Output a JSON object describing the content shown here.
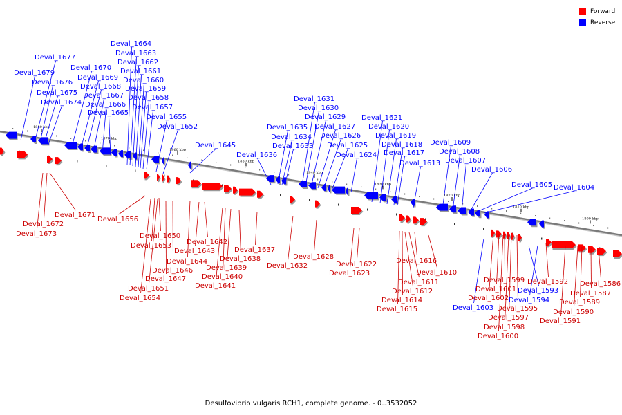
{
  "legend": {
    "forward": {
      "label": "Forward",
      "color": "#ff0000"
    },
    "reverse": {
      "label": "Reverse",
      "color": "#0000ff"
    }
  },
  "caption": "Desulfovibrio vulgaris RCH1, complete genome. - 0..3532052",
  "ticks": [
    "1880 kbp",
    "1870 kbp",
    "1860 kbp",
    "1850 kbp",
    "1840 kbp",
    "1830 kbp",
    "1820 kbp",
    "1810 kbp",
    "1800 kbp"
  ],
  "genes_reverse": [
    "Deval_1677",
    "Deval_1679",
    "Deval_1676",
    "Deval_1675",
    "Deval_1674",
    "Deval_1664",
    "Deval_1663",
    "Deval_1662",
    "Deval_1661",
    "Deval_1660",
    "Deval_1659",
    "Deval_1658",
    "Deval_1657",
    "Deval_1655",
    "Deval_1652",
    "Deval_1670",
    "Deval_1669",
    "Deval_1668",
    "Deval_1667",
    "Deval_1666",
    "Deval_1665",
    "Deval_1645",
    "Deval_1636",
    "Deval_1631",
    "Deval_1630",
    "Deval_1629",
    "Deval_1627",
    "Deval_1626",
    "Deval_1625",
    "Deval_1624",
    "Deval_1635",
    "Deval_1634",
    "Deval_1633",
    "Deval_1621",
    "Deval_1620",
    "Deval_1619",
    "Deval_1618",
    "Deval_1617",
    "Deval_1613",
    "Deval_1609",
    "Deval_1608",
    "Deval_1607",
    "Deval_1606",
    "Deval_1605",
    "Deval_1604",
    "Deval_1603",
    "Deval_1593",
    "Deval_1594"
  ],
  "genes_forward": [
    "Deval_1671",
    "Deval_1672",
    "Deval_1673",
    "Deval_1656",
    "Deval_1650",
    "Deval_1653",
    "Deval_1642",
    "Deval_1643",
    "Deval_1644",
    "Deval_1646",
    "Deval_1647",
    "Deval_1651",
    "Deval_1654",
    "Deval_1637",
    "Deval_1638",
    "Deval_1639",
    "Deval_1640",
    "Deval_1641",
    "Deval_1628",
    "Deval_1632",
    "Deval_1622",
    "Deval_1623",
    "Deval_1616",
    "Deval_1610",
    "Deval_1611",
    "Deval_1612",
    "Deval_1614",
    "Deval_1615",
    "Deval_1599",
    "Deval_1601",
    "Deval_1602",
    "Deval_1595",
    "Deval_1597",
    "Deval_1598",
    "Deval_1600",
    "Deval_1592",
    "Deval_1586",
    "Deval_1587",
    "Deval_1589",
    "Deval_1590",
    "Deval_1591"
  ]
}
